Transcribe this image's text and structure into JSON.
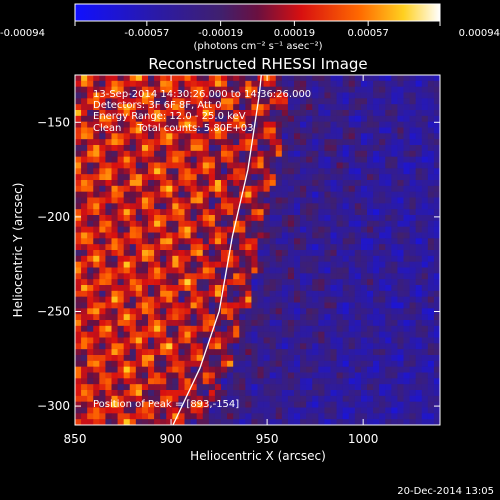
{
  "chart_data": {
    "type": "heatmap",
    "title": "Reconstructed RHESSI Image",
    "xlabel": "Heliocentric X (arcsec)",
    "ylabel": "Heliocentric Y (arcsec)",
    "xlim": [
      850,
      1040
    ],
    "ylim": [
      -310,
      -125
    ],
    "x_ticks": [
      850,
      900,
      950,
      1000
    ],
    "y_ticks": [
      -150,
      -200,
      -250,
      -300
    ],
    "colorbar": {
      "range": [
        -0.00094,
        0.00094
      ],
      "tick_labels": [
        "-0.00094",
        "-0.00057",
        "-0.00019",
        "0.00019",
        "0.00057",
        "0.00094"
      ],
      "unit_label": "(photons cm⁻² s⁻¹ asec⁻²)",
      "colormap": "blue-purple-red-yellow-white"
    },
    "grid": false,
    "annotations": {
      "line1": "13-Sep-2014 14:30:26.000 to 14:36:26.000",
      "line2": "Detectors: 3F 6F 8F, Att 0",
      "line3": "Energy Range: 12.0 - 25.0 keV",
      "line4": "Clean     Total counts: 5.80E+03",
      "peak": "Position of Peak = [893,-154]"
    },
    "peak": {
      "x": 893,
      "y": -154
    },
    "limb_curve": [
      [
        901,
        -310
      ],
      [
        915,
        -280
      ],
      [
        925,
        -250
      ],
      [
        932,
        -210
      ],
      [
        940,
        -175
      ],
      [
        946,
        -135
      ],
      [
        947,
        -125
      ]
    ]
  },
  "footer": {
    "timestamp": "20-Dec-2014 13:05"
  }
}
